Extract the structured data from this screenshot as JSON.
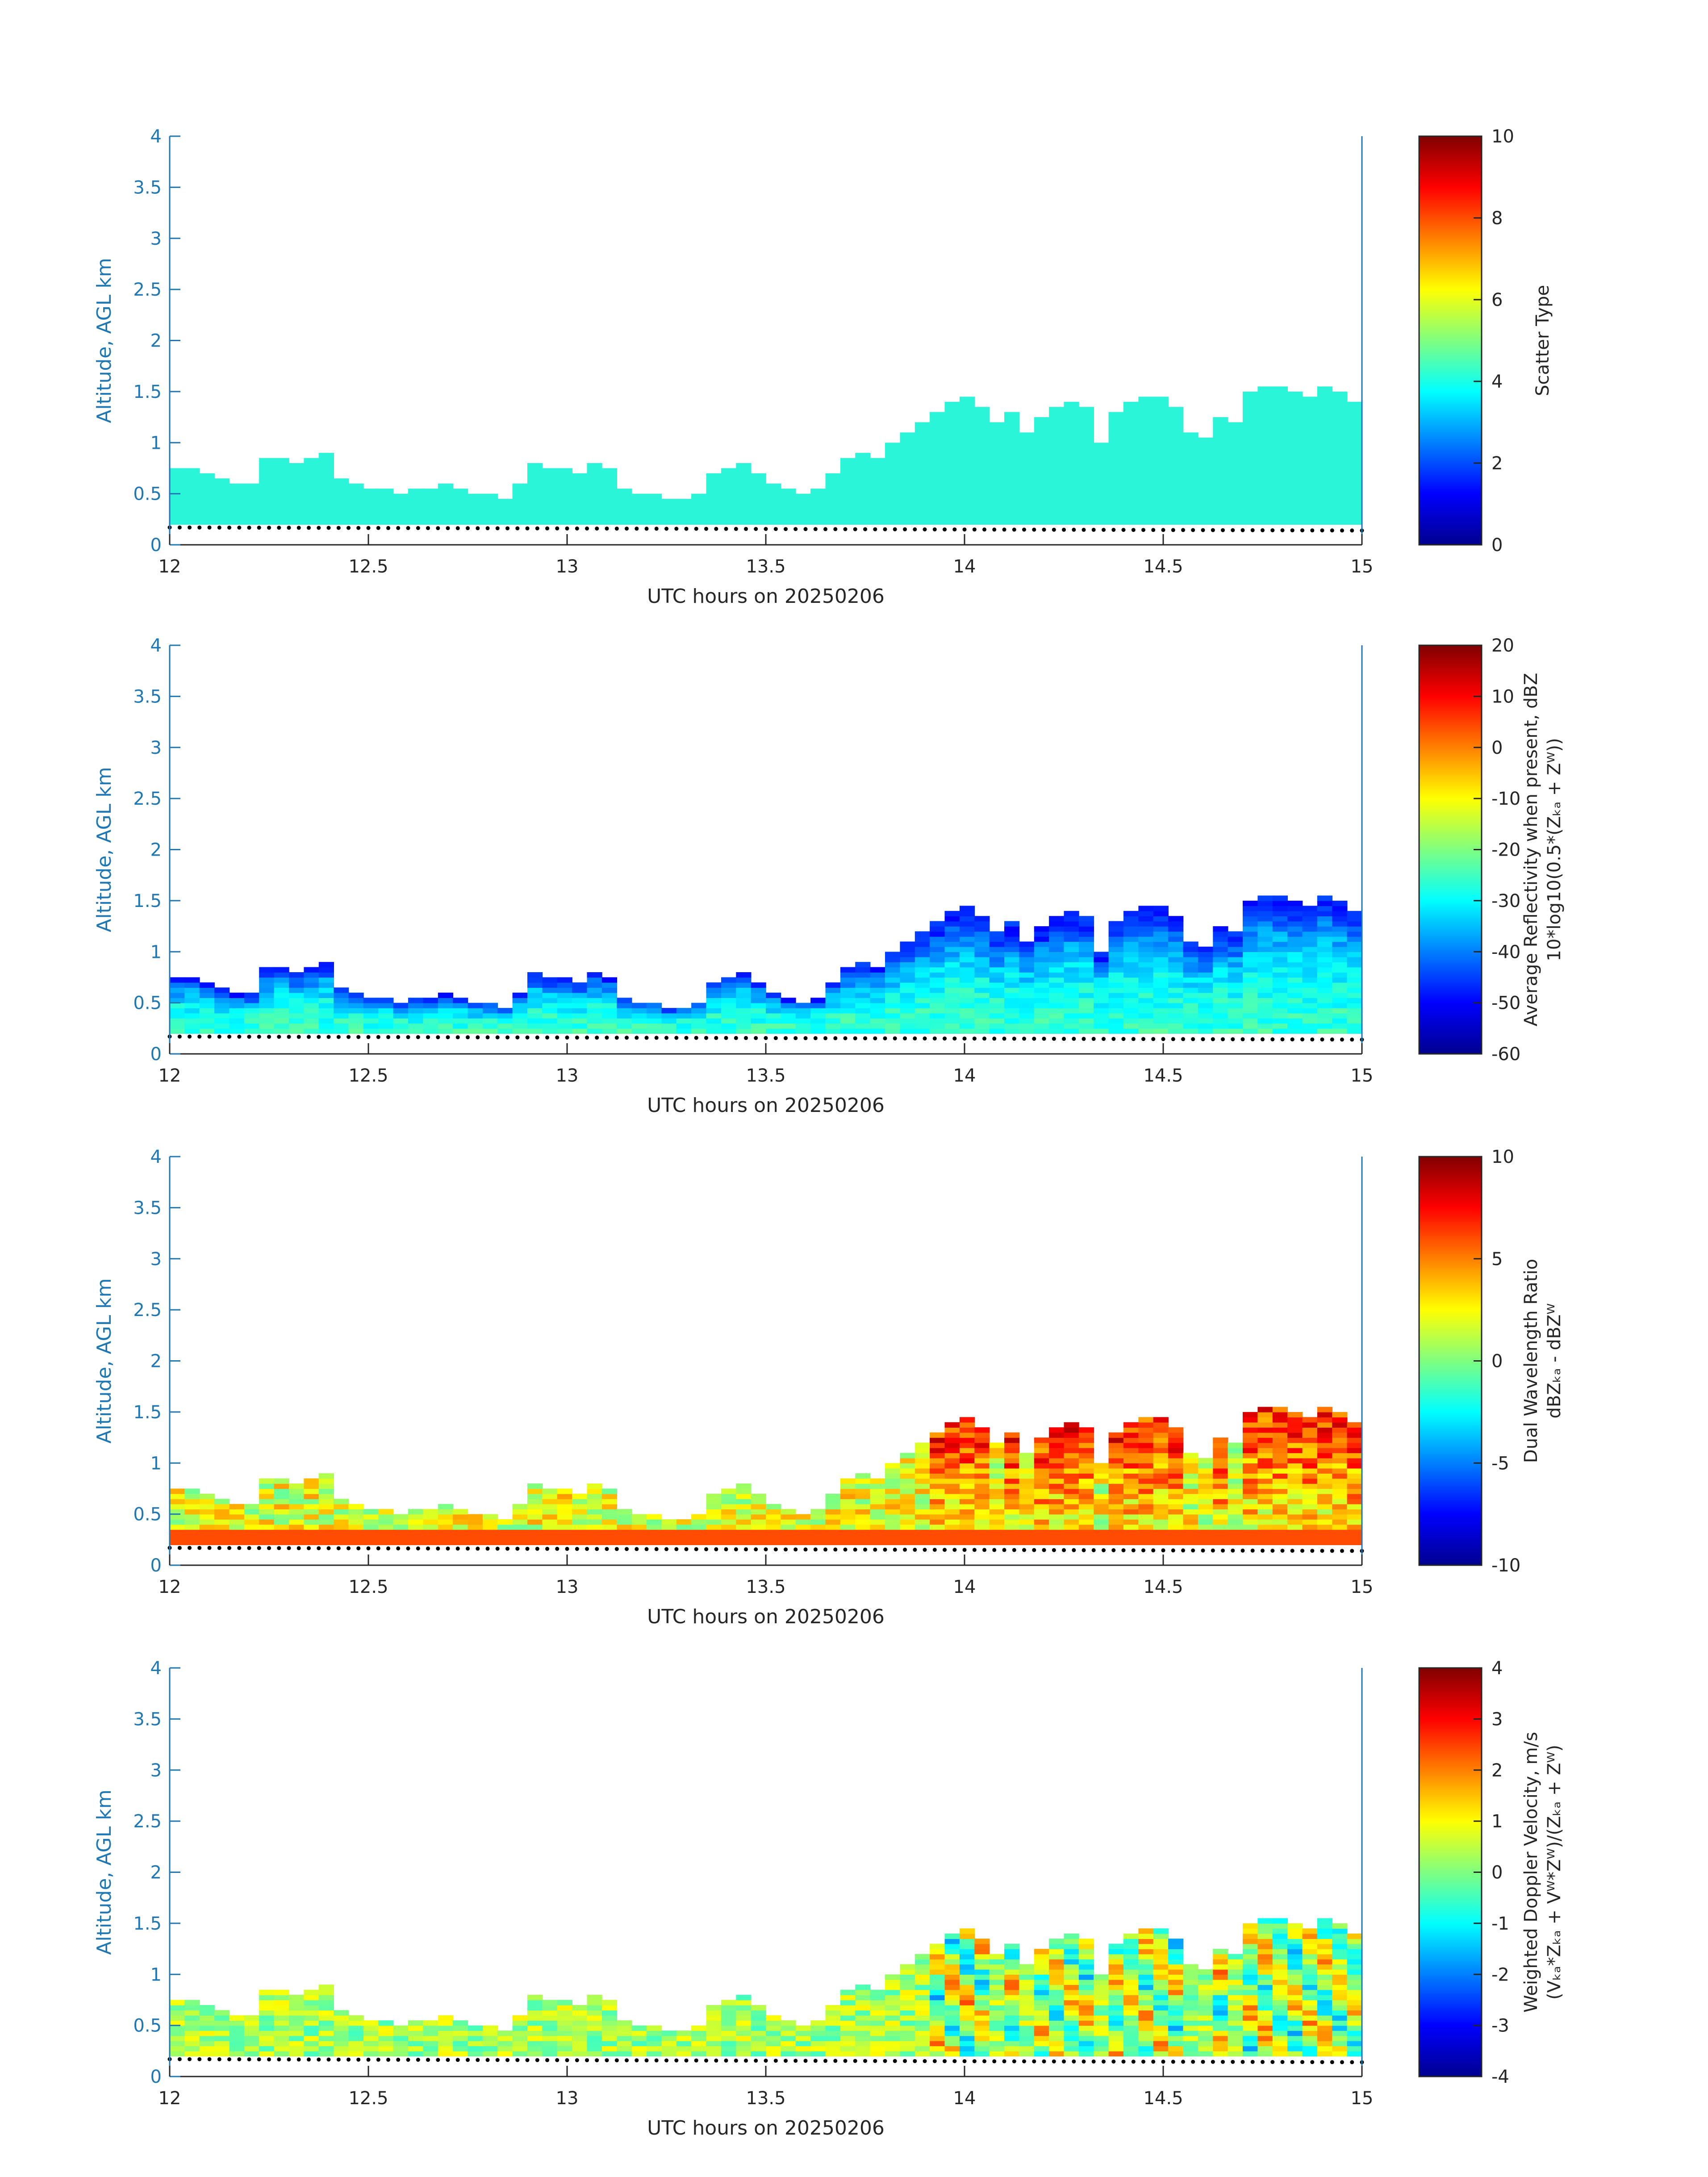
{
  "colors": {
    "axis": "#1f77b4",
    "text": "#262626",
    "scatter_cyan": "#2bf5d8",
    "surface_dots": "#000000",
    "background": "#ffffff"
  },
  "chart_data": [
    {
      "type": "heatmap",
      "xlabel": "UTC hours on 20250206",
      "ylabel": "Altitude, AGL km",
      "xlim": [
        12,
        15
      ],
      "ylim": [
        0,
        4
      ],
      "xticks": [
        "12",
        "12.5",
        "13",
        "13.5",
        "14",
        "14.5",
        "15"
      ],
      "yticks": [
        "0",
        "0.5",
        "1",
        "1.5",
        "2",
        "2.5",
        "3",
        "3.5",
        "4"
      ],
      "colorbar": {
        "label_lines": [
          "Scatter Type"
        ],
        "clim": [
          0,
          10
        ],
        "ticks": [
          "0",
          "2",
          "4",
          "6",
          "8",
          "10"
        ]
      },
      "field": "scatter",
      "cloud_top_km": [
        0.75,
        0.75,
        0.7,
        0.65,
        0.6,
        0.6,
        0.85,
        0.85,
        0.8,
        0.85,
        0.9,
        0.65,
        0.6,
        0.55,
        0.55,
        0.5,
        0.55,
        0.55,
        0.6,
        0.55,
        0.5,
        0.5,
        0.45,
        0.6,
        0.8,
        0.75,
        0.75,
        0.7,
        0.8,
        0.75,
        0.55,
        0.5,
        0.5,
        0.45,
        0.45,
        0.5,
        0.7,
        0.75,
        0.8,
        0.7,
        0.6,
        0.55,
        0.5,
        0.55,
        0.7,
        0.85,
        0.9,
        0.85,
        1.0,
        1.1,
        1.2,
        1.3,
        1.4,
        1.45,
        1.35,
        1.2,
        1.3,
        1.1,
        1.25,
        1.35,
        1.4,
        1.35,
        1.0,
        1.3,
        1.4,
        1.45,
        1.45,
        1.35,
        1.1,
        1.05,
        1.25,
        1.2,
        1.5,
        1.55,
        1.55,
        1.5,
        1.45,
        1.55,
        1.5,
        1.4
      ],
      "cloud_base_km": 0.2,
      "surface_km": 0.17
    },
    {
      "type": "heatmap",
      "xlabel": "UTC hours on 20250206",
      "ylabel": "Altitude, AGL km",
      "xlim": [
        12,
        15
      ],
      "ylim": [
        0,
        4
      ],
      "xticks": [
        "12",
        "12.5",
        "13",
        "13.5",
        "14",
        "14.5",
        "15"
      ],
      "yticks": [
        "0",
        "0.5",
        "1",
        "1.5",
        "2",
        "2.5",
        "3",
        "3.5",
        "4"
      ],
      "colorbar": {
        "label_lines": [
          "Average Reflectivity when present, dBZ",
          "10*log10(0.5*(Zₖₐ + Zᵂ))"
        ],
        "clim": [
          -60,
          20
        ],
        "ticks": [
          "-60",
          "-50",
          "-40",
          "-30",
          "-20",
          "-10",
          "0",
          "10",
          "20"
        ]
      },
      "field": "reflectivity",
      "cloud_top_km": [
        0.75,
        0.75,
        0.7,
        0.65,
        0.6,
        0.6,
        0.85,
        0.85,
        0.8,
        0.85,
        0.9,
        0.65,
        0.6,
        0.55,
        0.55,
        0.5,
        0.55,
        0.55,
        0.6,
        0.55,
        0.5,
        0.5,
        0.45,
        0.6,
        0.8,
        0.75,
        0.75,
        0.7,
        0.8,
        0.75,
        0.55,
        0.5,
        0.5,
        0.45,
        0.45,
        0.5,
        0.7,
        0.75,
        0.8,
        0.7,
        0.6,
        0.55,
        0.5,
        0.55,
        0.7,
        0.85,
        0.9,
        0.85,
        1.0,
        1.1,
        1.2,
        1.3,
        1.4,
        1.45,
        1.35,
        1.2,
        1.3,
        1.1,
        1.25,
        1.35,
        1.4,
        1.35,
        1.0,
        1.3,
        1.4,
        1.45,
        1.45,
        1.35,
        1.1,
        1.05,
        1.25,
        1.2,
        1.5,
        1.55,
        1.55,
        1.5,
        1.45,
        1.55,
        1.5,
        1.4
      ],
      "cloud_base_km": 0.2,
      "surface_km": 0.17
    },
    {
      "type": "heatmap",
      "xlabel": "UTC hours on 20250206",
      "ylabel": "Altitude, AGL km",
      "xlim": [
        12,
        15
      ],
      "ylim": [
        0,
        4
      ],
      "xticks": [
        "12",
        "12.5",
        "13",
        "13.5",
        "14",
        "14.5",
        "15"
      ],
      "yticks": [
        "0",
        "0.5",
        "1",
        "1.5",
        "2",
        "2.5",
        "3",
        "3.5",
        "4"
      ],
      "colorbar": {
        "label_lines": [
          "Dual Wavelength Ratio",
          "dBZₖₐ - dBZᵂ"
        ],
        "clim": [
          -10,
          10
        ],
        "ticks": [
          "-10",
          "-5",
          "0",
          "5",
          "10"
        ]
      },
      "field": "dwr",
      "cloud_top_km": [
        0.75,
        0.75,
        0.7,
        0.65,
        0.6,
        0.6,
        0.85,
        0.85,
        0.8,
        0.85,
        0.9,
        0.65,
        0.6,
        0.55,
        0.55,
        0.5,
        0.55,
        0.55,
        0.6,
        0.55,
        0.5,
        0.5,
        0.45,
        0.6,
        0.8,
        0.75,
        0.75,
        0.7,
        0.8,
        0.75,
        0.55,
        0.5,
        0.5,
        0.45,
        0.45,
        0.5,
        0.7,
        0.75,
        0.8,
        0.7,
        0.6,
        0.55,
        0.5,
        0.55,
        0.7,
        0.85,
        0.9,
        0.85,
        1.0,
        1.1,
        1.2,
        1.3,
        1.4,
        1.45,
        1.35,
        1.2,
        1.3,
        1.1,
        1.25,
        1.35,
        1.4,
        1.35,
        1.0,
        1.3,
        1.4,
        1.45,
        1.45,
        1.35,
        1.1,
        1.05,
        1.25,
        1.2,
        1.5,
        1.55,
        1.55,
        1.5,
        1.45,
        1.55,
        1.5,
        1.4
      ],
      "cloud_base_km": 0.2,
      "surface_km": 0.17
    },
    {
      "type": "heatmap",
      "xlabel": "UTC hours on 20250206",
      "ylabel": "Altitude, AGL km",
      "xlim": [
        12,
        15
      ],
      "ylim": [
        0,
        4
      ],
      "xticks": [
        "12",
        "12.5",
        "13",
        "13.5",
        "14",
        "14.5",
        "15"
      ],
      "yticks": [
        "0",
        "0.5",
        "1",
        "1.5",
        "2",
        "2.5",
        "3",
        "3.5",
        "4"
      ],
      "colorbar": {
        "label_lines": [
          "Weighted Doppler Velocity, m/s",
          "(Vₖₐ*Zₖₐ + Vᵂ*Zᵂ)/(Zₖₐ + Zᵂ)"
        ],
        "clim": [
          -4,
          4
        ],
        "ticks": [
          "-4",
          "-3",
          "-2",
          "-1",
          "0",
          "1",
          "2",
          "3",
          "4"
        ]
      },
      "field": "velocity",
      "cloud_top_km": [
        0.75,
        0.75,
        0.7,
        0.65,
        0.6,
        0.6,
        0.85,
        0.85,
        0.8,
        0.85,
        0.9,
        0.65,
        0.6,
        0.55,
        0.55,
        0.5,
        0.55,
        0.55,
        0.6,
        0.55,
        0.5,
        0.5,
        0.45,
        0.6,
        0.8,
        0.75,
        0.75,
        0.7,
        0.8,
        0.75,
        0.55,
        0.5,
        0.5,
        0.45,
        0.45,
        0.5,
        0.7,
        0.75,
        0.8,
        0.7,
        0.6,
        0.55,
        0.5,
        0.55,
        0.7,
        0.85,
        0.9,
        0.85,
        1.0,
        1.1,
        1.2,
        1.3,
        1.4,
        1.45,
        1.35,
        1.2,
        1.3,
        1.1,
        1.25,
        1.35,
        1.4,
        1.35,
        1.0,
        1.3,
        1.4,
        1.45,
        1.45,
        1.35,
        1.1,
        1.05,
        1.25,
        1.2,
        1.5,
        1.55,
        1.55,
        1.5,
        1.45,
        1.55,
        1.5,
        1.4
      ],
      "cloud_base_km": 0.2,
      "surface_km": 0.17
    }
  ]
}
